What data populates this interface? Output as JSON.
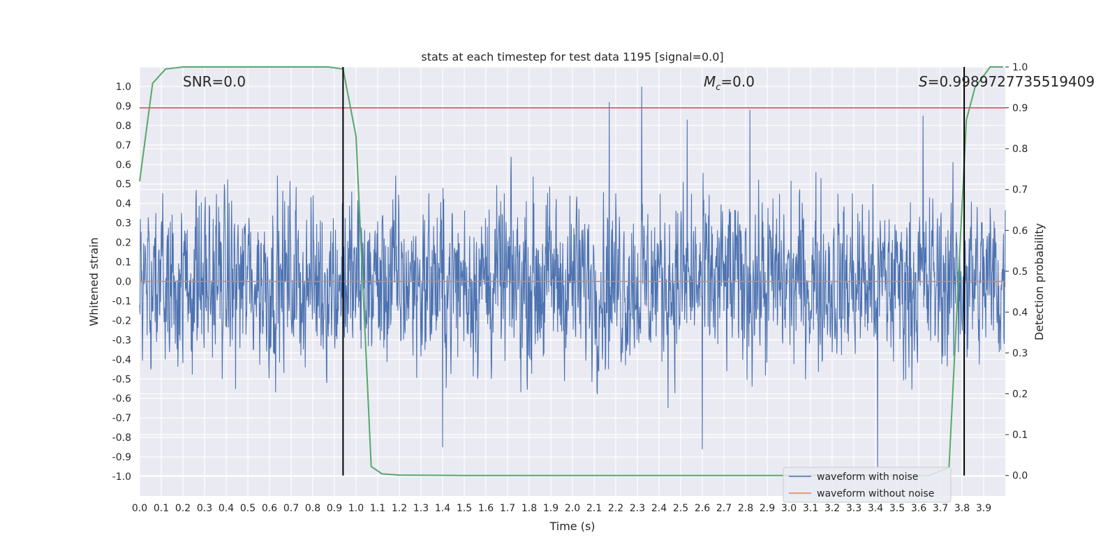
{
  "chart_data": {
    "type": "line",
    "title": "stats at each timestep for test data 1195 [signal=0.0]",
    "xlabel": "Time (s)",
    "ylabel_left": "Whitened strain",
    "ylabel_right": "Detection probability",
    "xlim": [
      0.0,
      4.0
    ],
    "ylim_left": [
      -1.1,
      1.1
    ],
    "ylim_right": [
      -0.05,
      1.0
    ],
    "x_ticks": [
      "0.0",
      "0.1",
      "0.2",
      "0.3",
      "0.4",
      "0.5",
      "0.6",
      "0.7",
      "0.8",
      "0.9",
      "1.0",
      "1.1",
      "1.2",
      "1.3",
      "1.4",
      "1.5",
      "1.6",
      "1.7",
      "1.8",
      "1.9",
      "2.0",
      "2.1",
      "2.2",
      "2.3",
      "2.4",
      "2.5",
      "2.6",
      "2.7",
      "2.8",
      "2.9",
      "3.0",
      "3.1",
      "3.2",
      "3.3",
      "3.4",
      "3.5",
      "3.6",
      "3.7",
      "3.8",
      "3.9"
    ],
    "y_ticks_left": [
      "1.0",
      "0.9",
      "0.8",
      "0.7",
      "0.6",
      "0.5",
      "0.4",
      "0.3",
      "0.2",
      "0.1",
      "0.0",
      "-0.1",
      "-0.2",
      "-0.3",
      "-0.4",
      "-0.5",
      "-0.6",
      "-0.7",
      "-0.8",
      "-0.9",
      "-1.0"
    ],
    "y_ticks_right": [
      "1.0",
      "0.9",
      "0.8",
      "0.7",
      "0.6",
      "0.5",
      "0.4",
      "0.3",
      "0.2",
      "0.1",
      "0.0"
    ],
    "annotations": {
      "snr": "SNR=0.0",
      "mc_symbol": "M",
      "mc_sub": "c",
      "mc_value": "=0.0",
      "s_symbol": "S",
      "s_value": "=0.9989727735519409"
    },
    "noise": {
      "amplitude_typical": 0.35,
      "peaks": [
        {
          "x": 2.17,
          "y": 0.92
        },
        {
          "x": 2.32,
          "y": 1.0
        },
        {
          "x": 2.53,
          "y": 0.83
        },
        {
          "x": 2.82,
          "y": 0.88
        },
        {
          "x": 3.62,
          "y": 0.85
        },
        {
          "x": 1.4,
          "y": -0.85
        },
        {
          "x": 2.6,
          "y": -0.86
        },
        {
          "x": 3.41,
          "y": -0.95
        }
      ]
    },
    "series": [
      {
        "name": "waveform with noise",
        "color": "#4c72b0",
        "axis": "left"
      },
      {
        "name": "waveform without noise",
        "color": "#dd8452",
        "axis": "left",
        "y": 0.0
      },
      {
        "axis": "right",
        "color": "#55a868",
        "x": [
          0.0,
          0.06,
          0.12,
          0.2,
          0.5,
          0.87,
          0.94,
          1.0,
          1.07,
          1.12,
          1.2,
          1.5,
          2.0,
          3.0,
          3.5,
          3.65,
          3.74,
          3.82,
          3.86,
          3.93,
          3.99
        ],
        "y": [
          0.72,
          0.96,
          0.995,
          1.0,
          1.0,
          1.0,
          0.995,
          0.83,
          0.022,
          0.004,
          0.001,
          0.0,
          0.0,
          0.0,
          0.0,
          0.0,
          0.02,
          0.87,
          0.95,
          1.0,
          1.0
        ]
      }
    ],
    "threshold": {
      "axis": "right",
      "y": 0.9,
      "color": "#c44e52"
    },
    "vlines": [
      {
        "x": 0.94,
        "ymin": 0.0,
        "ymax": 1.0,
        "axis": "right",
        "color": "#000000"
      },
      {
        "x": 3.81,
        "ymin": 0.0,
        "ymax": 1.0,
        "axis": "right",
        "color": "#000000"
      }
    ],
    "legend": {
      "position": "lower-right"
    },
    "grid": true
  }
}
